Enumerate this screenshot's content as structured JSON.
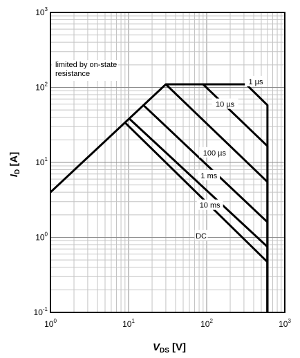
{
  "chart_data": {
    "type": "line",
    "xscale": "log",
    "yscale": "log",
    "xlim": [
      1,
      1000
    ],
    "ylim": [
      0.1,
      1000
    ],
    "grid": true,
    "xlabel": {
      "main": "V",
      "sub": "DS",
      "unit": "[V]"
    },
    "ylabel": {
      "main": "I",
      "sub": "D",
      "unit": "[A]"
    },
    "xticks": [
      {
        "value": 1,
        "base": "10",
        "exp": "0"
      },
      {
        "value": 10,
        "base": "10",
        "exp": "1"
      },
      {
        "value": 100,
        "base": "10",
        "exp": "2"
      },
      {
        "value": 1000,
        "base": "10",
        "exp": "3"
      }
    ],
    "yticks": [
      {
        "value": 0.1,
        "base": "10",
        "exp": "-1"
      },
      {
        "value": 1,
        "base": "10",
        "exp": "0"
      },
      {
        "value": 10,
        "base": "10",
        "exp": "1"
      },
      {
        "value": 100,
        "base": "10",
        "exp": "2"
      },
      {
        "value": 1000,
        "base": "10",
        "exp": "3"
      }
    ],
    "annotation": [
      "limited by on-state",
      "resistance"
    ],
    "series": [
      {
        "name": "DC",
        "x": [
          9,
          600,
          600
        ],
        "y": [
          34,
          0.47,
          0.1
        ]
      },
      {
        "name": "10 ms",
        "x": [
          10.3,
          600,
          600
        ],
        "y": [
          38,
          0.75,
          0.1
        ]
      },
      {
        "name": "1 ms",
        "x": [
          15.5,
          600,
          600
        ],
        "y": [
          58,
          1.6,
          0.1
        ]
      },
      {
        "name": "100 µs",
        "x": [
          30,
          600,
          600
        ],
        "y": [
          110,
          5.5,
          0.1
        ]
      },
      {
        "name": "10 µs",
        "x": [
          30,
          90,
          600,
          600
        ],
        "y": [
          110,
          110,
          16.5,
          0.1
        ]
      },
      {
        "name": "1 µs",
        "x": [
          1,
          30,
          320,
          600,
          600
        ],
        "y": [
          4,
          110,
          110,
          58,
          0.1
        ]
      }
    ],
    "curve_labels": [
      {
        "text": "1 µs",
        "x": 425,
        "y": 120
      },
      {
        "text": "10 µs",
        "x": 172,
        "y": 60
      },
      {
        "text": "100 µs",
        "x": 126,
        "y": 13.5
      },
      {
        "text": "1 ms",
        "x": 107,
        "y": 6.7
      },
      {
        "text": "10 ms",
        "x": 110,
        "y": 2.7
      },
      {
        "text": "DC",
        "x": 85,
        "y": 1.06
      }
    ]
  }
}
